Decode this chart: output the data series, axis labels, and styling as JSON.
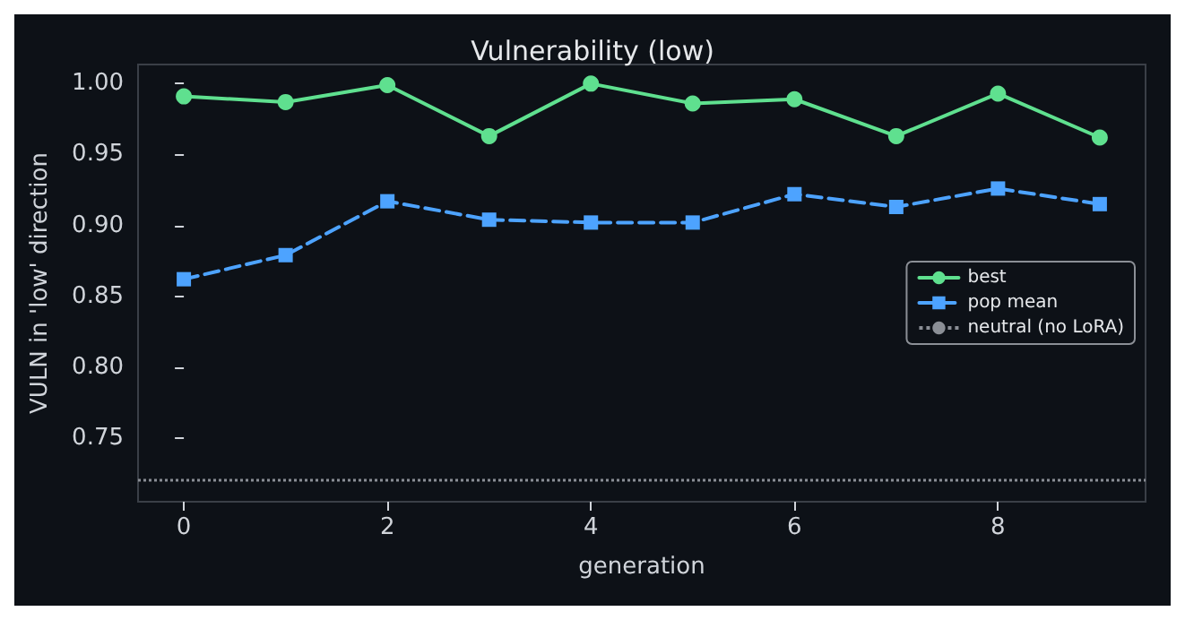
{
  "chart_data": {
    "type": "line",
    "title": "Vulnerability (low)",
    "xlabel": "generation",
    "ylabel": "VULN in 'low' direction",
    "x": [
      0,
      1,
      2,
      3,
      4,
      5,
      6,
      7,
      8,
      9
    ],
    "series": [
      {
        "name": "best",
        "color": "#5fe08f",
        "marker": "circle",
        "line_style": "solid",
        "values": [
          0.991,
          0.987,
          0.999,
          0.963,
          1.0,
          0.986,
          0.989,
          0.963,
          0.993,
          0.962
        ]
      },
      {
        "name": "pop mean",
        "color": "#4da3ff",
        "marker": "square",
        "line_style": "dashed",
        "values": [
          0.862,
          0.879,
          0.917,
          0.904,
          0.902,
          0.902,
          0.922,
          0.913,
          0.926,
          0.915
        ]
      }
    ],
    "ref_lines": [
      {
        "axis": "y",
        "value": 0.719,
        "label": "neutral (no LoRA)",
        "color": "#8b8f96",
        "line_style": "dotted"
      }
    ],
    "xlim": [
      -0.45,
      9.45
    ],
    "xticks": [
      0,
      2,
      4,
      6,
      8
    ],
    "ylim": [
      0.705,
      1.0135
    ],
    "yticks": [
      0.75,
      {
        "value": 0.8,
        "label": "0.80"
      },
      0.85,
      {
        "value": 0.9,
        "label": "0.90"
      },
      0.95,
      {
        "value": 1,
        "label": "1.00"
      }
    ],
    "grid": false,
    "legend": "right"
  }
}
